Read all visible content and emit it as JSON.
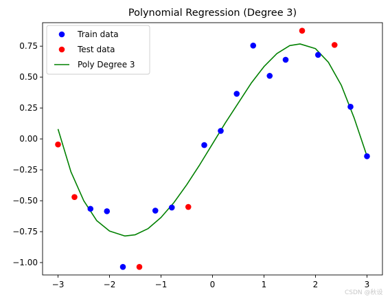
{
  "chart_data": {
    "type": "scatter",
    "title": "Polynomial Regression (Degree 3)",
    "xlabel": "",
    "ylabel": "",
    "xlim": [
      -3.3,
      3.3
    ],
    "ylim": [
      -1.1,
      0.94
    ],
    "xticks": [
      -3,
      -2,
      -1,
      0,
      1,
      2,
      3
    ],
    "xtick_labels": [
      "−3",
      "−2",
      "−1",
      "0",
      "1",
      "2",
      "3"
    ],
    "yticks": [
      -1.0,
      -0.75,
      -0.5,
      -0.25,
      0.0,
      0.25,
      0.5,
      0.75
    ],
    "ytick_labels": [
      "−1.00",
      "−0.75",
      "−0.50",
      "−0.25",
      "0.00",
      "0.25",
      "0.50",
      "0.75"
    ],
    "grid": false,
    "legend_position": "top-left",
    "series": [
      {
        "name": "Train data",
        "kind": "scatter",
        "color": "#0000ff",
        "points": [
          {
            "x": -2.37,
            "y": -0.565
          },
          {
            "x": -2.05,
            "y": -0.585
          },
          {
            "x": -1.74,
            "y": -1.035
          },
          {
            "x": -1.11,
            "y": -0.58
          },
          {
            "x": -0.79,
            "y": -0.555
          },
          {
            "x": -0.16,
            "y": -0.05
          },
          {
            "x": 0.16,
            "y": 0.065
          },
          {
            "x": 0.47,
            "y": 0.365
          },
          {
            "x": 0.79,
            "y": 0.755
          },
          {
            "x": 1.11,
            "y": 0.51
          },
          {
            "x": 1.42,
            "y": 0.64
          },
          {
            "x": 2.05,
            "y": 0.68
          },
          {
            "x": 2.68,
            "y": 0.26
          },
          {
            "x": 3.0,
            "y": -0.14
          }
        ]
      },
      {
        "name": "Test data",
        "kind": "scatter",
        "color": "#ff0000",
        "points": [
          {
            "x": -3.0,
            "y": -0.045
          },
          {
            "x": -2.68,
            "y": -0.47
          },
          {
            "x": -1.42,
            "y": -1.035
          },
          {
            "x": -0.47,
            "y": -0.55
          },
          {
            "x": 1.74,
            "y": 0.875
          },
          {
            "x": 2.37,
            "y": 0.76
          }
        ]
      },
      {
        "name": "Poly Degree 3",
        "kind": "line",
        "color": "#008000",
        "points": [
          {
            "x": -3.0,
            "y": 0.08
          },
          {
            "x": -2.75,
            "y": -0.265
          },
          {
            "x": -2.5,
            "y": -0.5
          },
          {
            "x": -2.25,
            "y": -0.66
          },
          {
            "x": -2.0,
            "y": -0.745
          },
          {
            "x": -1.7,
            "y": -0.785
          },
          {
            "x": -1.5,
            "y": -0.775
          },
          {
            "x": -1.25,
            "y": -0.725
          },
          {
            "x": -1.0,
            "y": -0.635
          },
          {
            "x": -0.75,
            "y": -0.515
          },
          {
            "x": -0.5,
            "y": -0.37
          },
          {
            "x": -0.25,
            "y": -0.21
          },
          {
            "x": 0.0,
            "y": -0.04
          },
          {
            "x": 0.25,
            "y": 0.13
          },
          {
            "x": 0.5,
            "y": 0.29
          },
          {
            "x": 0.75,
            "y": 0.45
          },
          {
            "x": 1.0,
            "y": 0.585
          },
          {
            "x": 1.25,
            "y": 0.69
          },
          {
            "x": 1.5,
            "y": 0.755
          },
          {
            "x": 1.7,
            "y": 0.768
          },
          {
            "x": 2.0,
            "y": 0.73
          },
          {
            "x": 2.25,
            "y": 0.62
          },
          {
            "x": 2.5,
            "y": 0.435
          },
          {
            "x": 2.75,
            "y": 0.17
          },
          {
            "x": 3.0,
            "y": -0.14
          }
        ]
      }
    ]
  },
  "watermark": "CSDN @秋设"
}
